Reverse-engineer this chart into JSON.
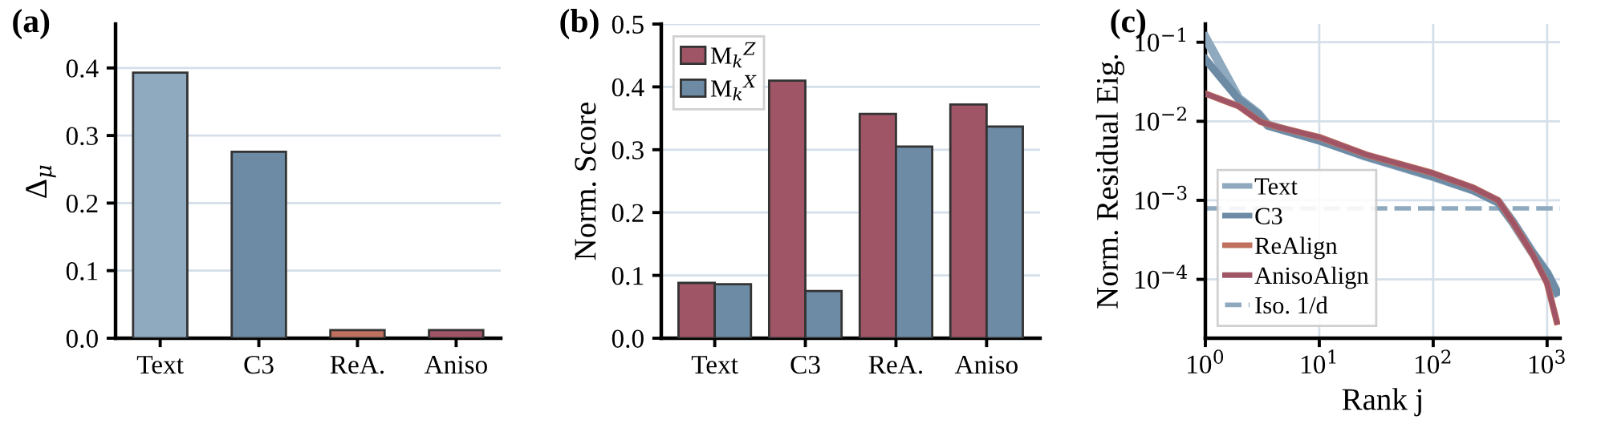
{
  "chart_data": [
    {
      "type": "bar",
      "title": "(a)",
      "ylabel": "Δ$_{μ}$",
      "categories": [
        "Text",
        "C3",
        "ReA.",
        "Aniso"
      ],
      "values": [
        0.393,
        0.276,
        0.012,
        0.012
      ],
      "colors": [
        "#8fa9bf",
        "#6d8ba5",
        "#c0705e",
        "#a05566"
      ],
      "ylim": [
        0,
        0.465
      ],
      "yticks": [
        {
          "value": 0,
          "label": "0.0"
        },
        0.1,
        0.2,
        0.3,
        0.4
      ],
      "grid": "y",
      "legend": false
    },
    {
      "type": "bar",
      "title": "(b)",
      "ylabel": "Norm. Score",
      "categories": [
        "Text",
        "C3",
        "ReA.",
        "Aniso"
      ],
      "series": [
        {
          "name": "M$_{k}$$^{Z}$",
          "color": "#a05566",
          "values": [
            0.088,
            0.41,
            0.357,
            0.372
          ]
        },
        {
          "name": "M$_{k}$$^{X}$",
          "color": "#6d8ba5",
          "values": [
            0.086,
            0.075,
            0.305,
            0.337
          ]
        }
      ],
      "ylim": [
        0,
        0.5
      ],
      "yticks": [
        {
          "value": 0,
          "label": "0.0"
        },
        0.1,
        0.2,
        0.3,
        0.4,
        0.5
      ],
      "grid": "y",
      "legend": "top left"
    },
    {
      "type": "line",
      "title": "(c)",
      "xlabel": "Rank j",
      "ylabel": "Norm. Residual Eig.",
      "log": "xy",
      "series": [
        {
          "name": "Text",
          "color": "#8fa9bf",
          "x": [
            1,
            1.96,
            2.9,
            3.55,
            10,
            25.7,
            100,
            226,
            372,
            500,
            740,
            1000,
            1217
          ],
          "values": [
            0.115,
            0.0195,
            0.0126,
            0.0089,
            0.0058,
            0.0036,
            0.002,
            0.00135,
            0.00095,
            0.00053,
            0.00022,
            0.00012,
            6.9e-05
          ]
        },
        {
          "name": "C3",
          "color": "#6d8ba5",
          "x": [
            1,
            1.96,
            2.9,
            3.55,
            10,
            25.7,
            100,
            226,
            372,
            500,
            740,
            1000,
            1217
          ],
          "values": [
            0.061,
            0.019,
            0.0124,
            0.0088,
            0.0057,
            0.0036,
            0.002,
            0.00133,
            0.00094,
            0.00053,
            0.00022,
            0.00012,
            6.9e-05
          ]
        },
        {
          "name": "ReAlign",
          "color": "#c0705e",
          "x": [
            1,
            1.96,
            3.06,
            4.32,
            10,
            25.7,
            100,
            226,
            372,
            500,
            740,
            1000,
            1217
          ],
          "values": [
            0.0224,
            0.0155,
            0.0098,
            0.0085,
            0.0063,
            0.0038,
            0.0022,
            0.00144,
            0.001,
            0.00053,
            0.00021,
            8.9e-05,
            2.9e-05
          ]
        },
        {
          "name": "AnisoAlign",
          "color": "#a05566",
          "x": [
            1,
            1.96,
            3.06,
            4.32,
            10,
            25.7,
            100,
            226,
            372,
            500,
            740,
            1000,
            1217
          ],
          "values": [
            0.0224,
            0.0155,
            0.0098,
            0.0085,
            0.0063,
            0.0038,
            0.0022,
            0.00144,
            0.001,
            0.00053,
            0.00021,
            8.9e-05,
            2.9e-05
          ]
        }
      ],
      "ref_lines": [
        {
          "axis": "y",
          "value": 0.00079,
          "label": "Iso. 1/d",
          "color": "#8fa9bf",
          "line_style": "dashed"
        }
      ],
      "xlim": [
        1,
        1300
      ],
      "xticks": [
        {
          "value": 1,
          "label": "10$^{0}$"
        },
        {
          "value": 10,
          "label": "10$^{1}$"
        },
        {
          "value": 100,
          "label": "10$^{2}$"
        },
        {
          "value": 1000,
          "label": "10$^{3}$"
        }
      ],
      "ylim": [
        1.8e-05,
        0.17
      ],
      "yticks": [
        {
          "value": 0.0001,
          "label": "10$^{−4}$"
        },
        {
          "value": 0.001,
          "label": "10$^{−3}$"
        },
        {
          "value": 0.01,
          "label": "10$^{−2}$"
        },
        {
          "value": 0.1,
          "label": "10$^{−1}$"
        }
      ],
      "grid": true,
      "legend": "bottom left"
    }
  ]
}
